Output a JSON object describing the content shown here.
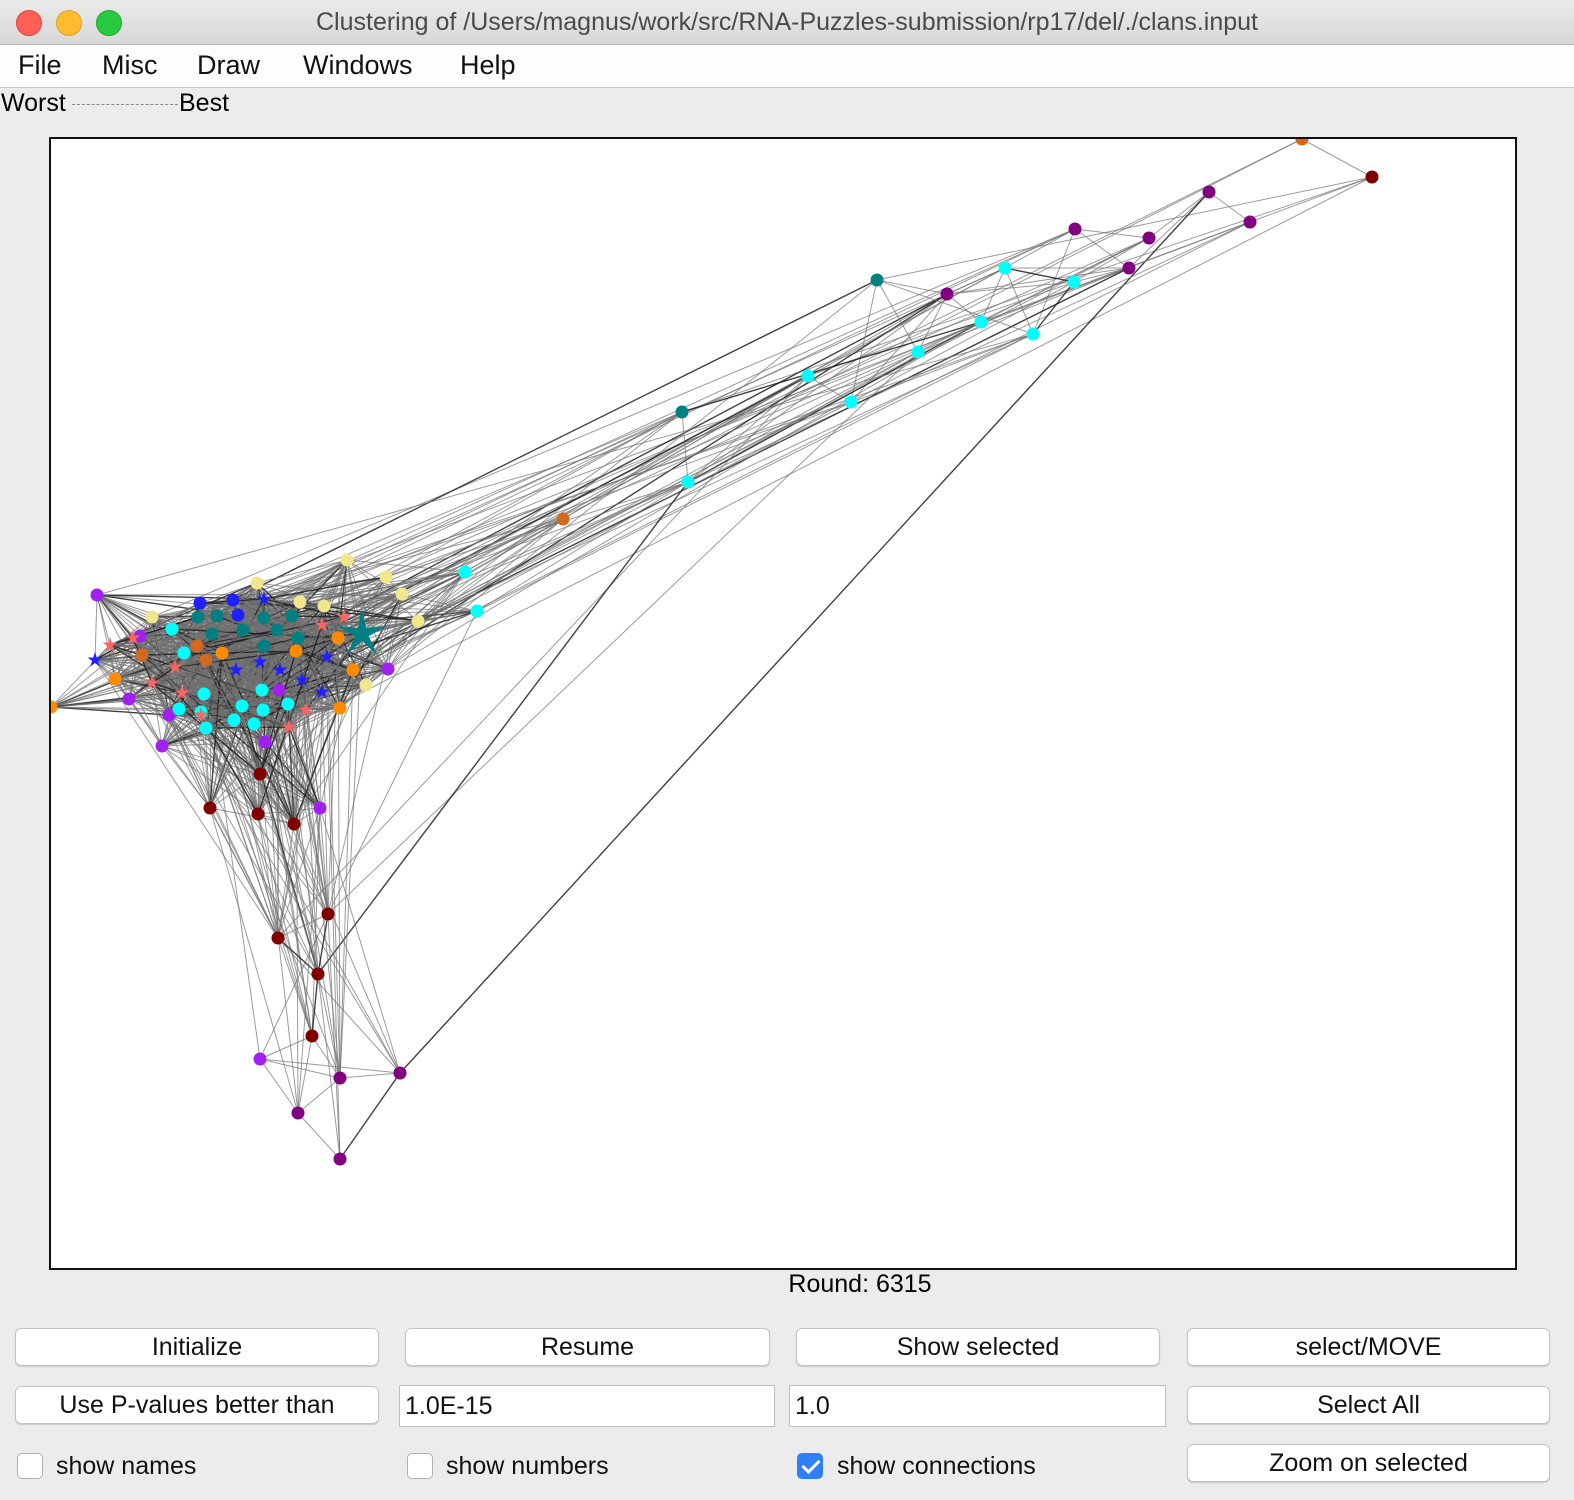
{
  "window": {
    "title": "Clustering of /Users/magnus/work/src/RNA-Puzzles-submission/rp17/del/./clans.input"
  },
  "menu": [
    "File",
    "Misc",
    "Draw",
    "Windows",
    "Help"
  ],
  "legend": {
    "worst": "Worst",
    "best": "Best"
  },
  "status": {
    "round": "Round: 6315"
  },
  "buttons": {
    "initialize": "Initialize",
    "resume": "Resume",
    "show_selected": "Show selected",
    "select_move": "select/MOVE",
    "use_pvalues": "Use P-values better than",
    "select_all": "Select All",
    "zoom_selected": "Zoom on selected"
  },
  "inputs": {
    "pvalue": "1.0E-15",
    "second_value": "1.0"
  },
  "checkboxes": {
    "show_names": {
      "label": "show names",
      "checked": false
    },
    "show_numbers": {
      "label": "show numbers",
      "checked": false
    },
    "show_connections": {
      "label": "show connections",
      "checked": true
    }
  },
  "colors": {
    "orange": "#ff8c00",
    "darkorange": "#d2691e",
    "maroon": "#800000",
    "purple": "#800080",
    "violet": "#a020f0",
    "teal": "#008080",
    "cyan": "#00ffff",
    "khaki": "#f0e68c",
    "blue": "#2020ff",
    "salmon": "#fa6464",
    "edge": "#707070",
    "edge_strong": "#202020"
  }
}
